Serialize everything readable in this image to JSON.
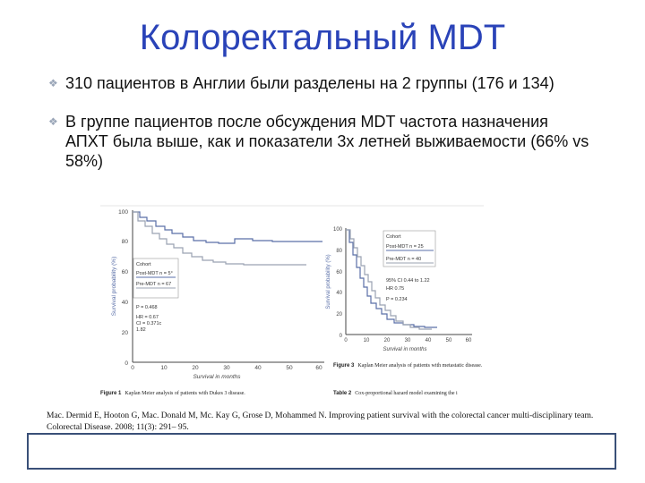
{
  "slide": {
    "title": "Колоректальный MDT",
    "bullet_icon": "diamond-bullet-icon",
    "bullets": [
      "310 пациентов в Англии были разделены на 2 группы (176 и 134)",
      "В группе пациентов после  обсуждения MDT частота назначения АПХТ была выше, как и показатели 3х летней выживаемости (66% vs 58%)"
    ],
    "citation": "Mac. Dermid E, Hooton G, Mac. Donald M, Mc. Kay G, Grose D, Mohammed N. Improving patient survival with the colorectal cancer multi-disciplinary team. Colorectal Disease. 2008; 11(3): 291– 95."
  },
  "figure_left": {
    "ylabel": "Survival probability (%)",
    "xlabel": "Survival in months",
    "x_ticks": [
      "0",
      "10",
      "20",
      "30",
      "40",
      "50",
      "60"
    ],
    "y_ticks": [
      "0",
      "20",
      "40",
      "60",
      "80",
      "100"
    ],
    "legend": {
      "heading": "Cohort",
      "post": "Post-MDT n = 5°",
      "pre": "Pre-MDT n = 67"
    },
    "stats": [
      "P = 0.468",
      "HR = 0.67",
      "CI = 0.371c",
      "1.82"
    ],
    "caption_bold": "Figure 1",
    "caption": "Kaplan Meier analysis of patients with Dukes 3 disease."
  },
  "figure_right": {
    "ylabel": "Survival probability (%)",
    "xlabel": "Survival in months",
    "x_ticks": [
      "0",
      "10",
      "20",
      "30",
      "40",
      "50",
      "60"
    ],
    "y_ticks": [
      "0",
      "20",
      "40",
      "60",
      "80",
      "100"
    ],
    "legend": {
      "heading": "Cohort",
      "post": "Post-MDT n = 25",
      "pre": "Pre-MDT n = 40"
    },
    "stats": [
      "95% CI 0.44 to 1.22",
      "HR 0.75",
      "P = 0.234"
    ],
    "caption_bold": "Figure 3",
    "caption": "Kaplan Meier analysis of patients with metastatic disease.",
    "table_caption_bold": "Table 2",
    "table_caption": "Cox-proportional hazard model examining the i"
  },
  "colors": {
    "title": "#2a43b8",
    "post_curve": "#5a6fa8",
    "pre_curve": "#9aa2b2",
    "footer_border": "#3a5078"
  }
}
